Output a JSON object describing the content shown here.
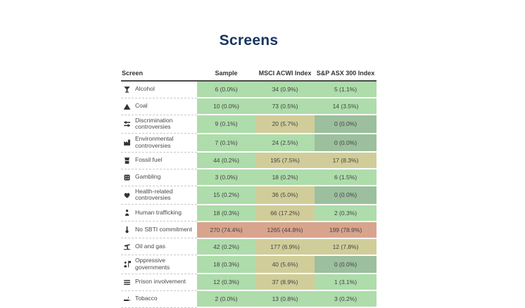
{
  "chart_data": {
    "type": "table",
    "title": "Screens",
    "columns": [
      "Screen",
      "Sample",
      "MSCI ACWI Index",
      "S&P ASX 300 Index"
    ],
    "rows": [
      {
        "icon": "cocktail-icon",
        "label": "Alcohol",
        "cells": [
          {
            "text": "6 (0.0%)",
            "color": "green"
          },
          {
            "text": "34 (0.9%)",
            "color": "green"
          },
          {
            "text": "5 (1.1%)",
            "color": "green"
          }
        ]
      },
      {
        "icon": "mountain-icon",
        "label": "Coal",
        "cells": [
          {
            "text": "10 (0.0%)",
            "color": "green"
          },
          {
            "text": "73 (0.5%)",
            "color": "green"
          },
          {
            "text": "14 (3.5%)",
            "color": "green"
          }
        ]
      },
      {
        "icon": "sliders-icon",
        "label": "Discrimination controversies",
        "cells": [
          {
            "text": "9 (0.1%)",
            "color": "green"
          },
          {
            "text": "20 (5.7%)",
            "color": "tan"
          },
          {
            "text": "0 (0.0%)",
            "color": "dark"
          }
        ]
      },
      {
        "icon": "factory-icon",
        "label": "Environmental controversies",
        "cells": [
          {
            "text": "7 (0.1%)",
            "color": "green"
          },
          {
            "text": "24 (2.5%)",
            "color": "green"
          },
          {
            "text": "0 (0.0%)",
            "color": "dark"
          }
        ]
      },
      {
        "icon": "oil-barrel-icon",
        "label": "Fossil fuel",
        "cells": [
          {
            "text": "44 (0.2%)",
            "color": "green"
          },
          {
            "text": "195 (7.5%)",
            "color": "tan"
          },
          {
            "text": "17 (8.3%)",
            "color": "tan"
          }
        ]
      },
      {
        "icon": "dice-icon",
        "label": "Gambling",
        "cells": [
          {
            "text": "3 (0.0%)",
            "color": "green"
          },
          {
            "text": "18 (0.2%)",
            "color": "green"
          },
          {
            "text": "6 (1.5%)",
            "color": "green"
          }
        ]
      },
      {
        "icon": "heart-icon",
        "label": "Health-related controversies",
        "cells": [
          {
            "text": "15 (0.2%)",
            "color": "green"
          },
          {
            "text": "36 (5.0%)",
            "color": "tan"
          },
          {
            "text": "0 (0.0%)",
            "color": "dark"
          }
        ]
      },
      {
        "icon": "person-icon",
        "label": "Human trafficking",
        "cells": [
          {
            "text": "18 (0.3%)",
            "color": "green"
          },
          {
            "text": "66 (17.2%)",
            "color": "tan"
          },
          {
            "text": "2 (0.3%)",
            "color": "green"
          }
        ]
      },
      {
        "icon": "thermometer-icon",
        "label": "No SBTI commitment",
        "cells": [
          {
            "text": "270 (74.4%)",
            "color": "salmon"
          },
          {
            "text": "1265 (44.8%)",
            "color": "salmon"
          },
          {
            "text": "199 (78.9%)",
            "color": "salmon"
          }
        ]
      },
      {
        "icon": "pump-jack-icon",
        "label": "Oil and gas",
        "cells": [
          {
            "text": "42 (0.2%)",
            "color": "green"
          },
          {
            "text": "177 (6.9%)",
            "color": "tan"
          },
          {
            "text": "12 (7.8%)",
            "color": "tan"
          }
        ]
      },
      {
        "icon": "person-flag-icon",
        "label": "Oppressive governments",
        "cells": [
          {
            "text": "18 (0.3%)",
            "color": "green"
          },
          {
            "text": "40 (5.6%)",
            "color": "tan"
          },
          {
            "text": "0 (0.0%)",
            "color": "dark"
          }
        ]
      },
      {
        "icon": "prison-bars-icon",
        "label": "Prison involvement",
        "cells": [
          {
            "text": "12 (0.3%)",
            "color": "green"
          },
          {
            "text": "37 (8.9%)",
            "color": "tan"
          },
          {
            "text": "1 (3.1%)",
            "color": "green"
          }
        ]
      },
      {
        "icon": "cigarette-icon",
        "label": "Tobacco",
        "cells": [
          {
            "text": "2 (0.0%)",
            "color": "green"
          },
          {
            "text": "13 (0.8%)",
            "color": "green"
          },
          {
            "text": "3 (0.2%)",
            "color": "green"
          }
        ]
      }
    ]
  },
  "colors": {
    "green": "#aedcab",
    "tan": "#d1cd9a",
    "dark": "#9cbf9e",
    "salmon": "#d8a48d",
    "navy": "#17355f"
  }
}
